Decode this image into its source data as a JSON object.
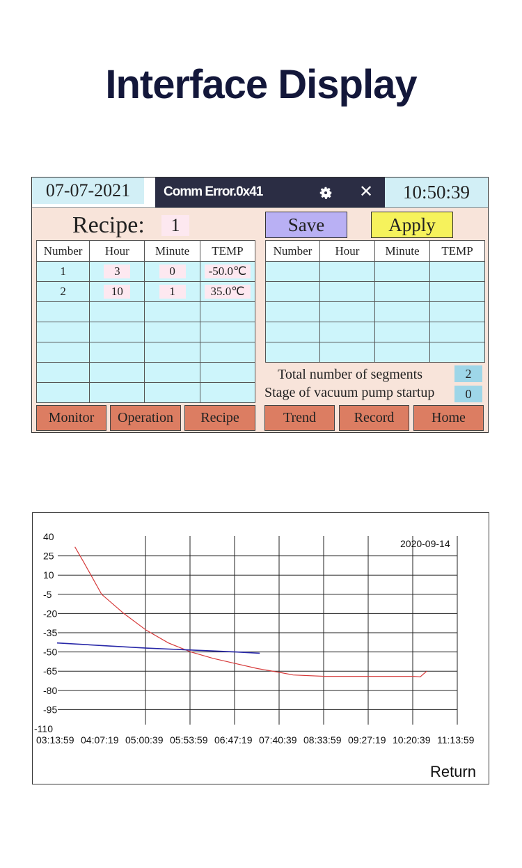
{
  "header": {
    "title": "Interface Display"
  },
  "panel1": {
    "date": "07-07-2021",
    "error_text": "Comm Error.0x41",
    "time": "10:50:39",
    "recipe_label": "Recipe:",
    "recipe_value": "1",
    "save_label": "Save",
    "apply_label": "Apply",
    "left_table": {
      "headers": [
        "Number",
        "Hour",
        "Minute",
        "TEMP"
      ],
      "rows": [
        [
          "1",
          "3",
          "0",
          "-50.0℃"
        ],
        [
          "2",
          "10",
          "1",
          "35.0℃"
        ]
      ]
    },
    "right_table": {
      "headers": [
        "Number",
        "Hour",
        "Minute",
        "TEMP"
      ]
    },
    "segments_label": "Total number of segments",
    "segments_value": "2",
    "pump_label": "Stage of vacuum pump startup",
    "pump_value": "0",
    "nav": {
      "monitor": "Monitor",
      "operation": "Operation",
      "recipe": "Recipe",
      "trend": "Trend",
      "record": "Record",
      "home": "Home"
    },
    "colors": {
      "accent_error_bar": "#2b2d44",
      "nav_button": "#dc7d62",
      "cell": "#cdf5fb"
    },
    "icons": [
      "gear-icon",
      "close-icon"
    ]
  },
  "panel2": {
    "return_label": "Return"
  },
  "chart_data": {
    "type": "line",
    "date_label": "2020-09-14",
    "y_ticks": [
      40,
      25,
      10,
      -5,
      -20,
      -35,
      -50,
      -65,
      -80,
      -95,
      -110
    ],
    "ylim": [
      -110,
      40
    ],
    "x_ticks": [
      "03:13:59",
      "04:07:19",
      "05:00:39",
      "05:53:59",
      "06:47:19",
      "07:40:39",
      "08:33:59",
      "09:27:19",
      "10:20:39",
      "11:13:59"
    ],
    "grid": true,
    "series": [
      {
        "color": "#d63a3a",
        "points": [
          [
            0.4,
            32
          ],
          [
            0.6,
            20
          ],
          [
            1.0,
            -5
          ],
          [
            1.5,
            -20
          ],
          [
            2.0,
            -33
          ],
          [
            2.5,
            -43
          ],
          [
            3.0,
            -50
          ],
          [
            3.5,
            -55
          ],
          [
            4.0,
            -59
          ],
          [
            4.5,
            -63
          ],
          [
            5.0,
            -66
          ],
          [
            5.3,
            -68
          ],
          [
            6.0,
            -69
          ],
          [
            7.0,
            -69
          ],
          [
            8.0,
            -69
          ],
          [
            8.15,
            -69.5
          ],
          [
            8.3,
            -65
          ]
        ]
      },
      {
        "color": "#2828a8",
        "points": [
          [
            0.0,
            -43
          ],
          [
            1.0,
            -45
          ],
          [
            2.0,
            -47
          ],
          [
            3.0,
            -48.5
          ],
          [
            4.0,
            -50
          ],
          [
            4.55,
            -51
          ]
        ]
      }
    ]
  }
}
